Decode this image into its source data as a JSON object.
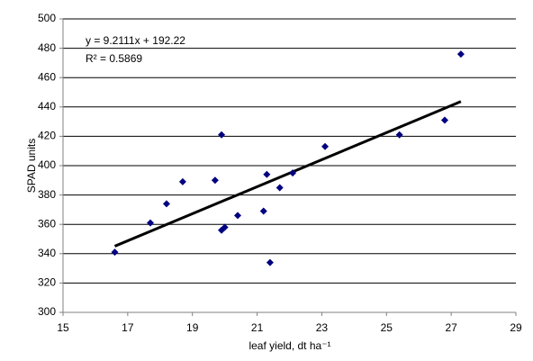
{
  "chart_data": {
    "type": "scatter",
    "x_label": "leaf yield, dt ha⁻¹",
    "y_label": "SPAD units",
    "x": [
      16.6,
      17.7,
      18.2,
      18.7,
      19.7,
      19.9,
      19.9,
      20.0,
      20.4,
      21.2,
      21.3,
      21.4,
      21.7,
      22.1,
      23.1,
      25.4,
      26.8,
      27.3
    ],
    "values": [
      341,
      361,
      374,
      389,
      390,
      421,
      356,
      358,
      366,
      369,
      394,
      334,
      385,
      395,
      413,
      421,
      431,
      476
    ],
    "color": "#000080",
    "xlim": [
      15,
      29
    ],
    "xticks": [
      15,
      17,
      19,
      21,
      23,
      25,
      27,
      29
    ],
    "ylim": [
      300,
      500
    ],
    "yticks": [
      300,
      320,
      340,
      360,
      380,
      400,
      420,
      440,
      460,
      480,
      500
    ],
    "grid": true,
    "trendline": {
      "slope": 9.2111,
      "intercept": 192.22,
      "color": "#000000",
      "equation": "y = 9.2111x + 192.22",
      "r2_label": "R² = 0.5869"
    }
  }
}
